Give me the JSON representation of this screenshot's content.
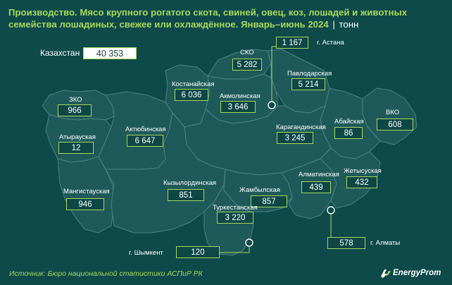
{
  "title": {
    "main": "Производство. Мясо крупного рогатого скота, свиней, овец, коз, лошадей и животных семейства лошадиных, свежее или охлаждённое. Январь–июнь 2024",
    "separator": "|",
    "unit": "тонн"
  },
  "total": {
    "label": "Казахстан",
    "value": "40 353"
  },
  "regions": {
    "zko": {
      "name": "ЗКО",
      "value": "966"
    },
    "atyrau": {
      "name": "Атырауская",
      "value": "12"
    },
    "mangystau": {
      "name": "Мангистауская",
      "value": "946"
    },
    "aktobe": {
      "name": "Актюбинская",
      "value": "6 647"
    },
    "kostanay": {
      "name": "Костанайская",
      "value": "6 036"
    },
    "sko": {
      "name": "СКО",
      "value": "5 282"
    },
    "astana": {
      "name": "г. Астана",
      "value": "1 167"
    },
    "pavlodar": {
      "name": "Павлодарская",
      "value": "5 214"
    },
    "akmola": {
      "name": "Акмолинская",
      "value": "3 646"
    },
    "vko": {
      "name": "ВКО",
      "value": "608"
    },
    "abai": {
      "name": "Абайская",
      "value": "86"
    },
    "karaganda": {
      "name": "Карагандинская",
      "value": "3 245"
    },
    "kyzylorda": {
      "name": "Кызылординская",
      "value": "851"
    },
    "zhetysu": {
      "name": "Жетысуская",
      "value": "432"
    },
    "almaty_region": {
      "name": "Алматинская",
      "value": "439"
    },
    "zhambyl": {
      "name": "Жамбылская",
      "value": "857"
    },
    "turkestan": {
      "name": "Туркестанская",
      "value": "3 220"
    },
    "shymkent": {
      "name": "г. Шымкент",
      "value": "120"
    },
    "almaty_city": {
      "name": "г. Алматы",
      "value": "578"
    }
  },
  "source": "Источник: Бюро национальной статистики АСПиР РК",
  "brand": "EnergyProm",
  "colors": {
    "background": "#0e4a4a",
    "region_fill": "#1f5a5a",
    "accent": "#a8d85a",
    "text": "#ffffff"
  }
}
